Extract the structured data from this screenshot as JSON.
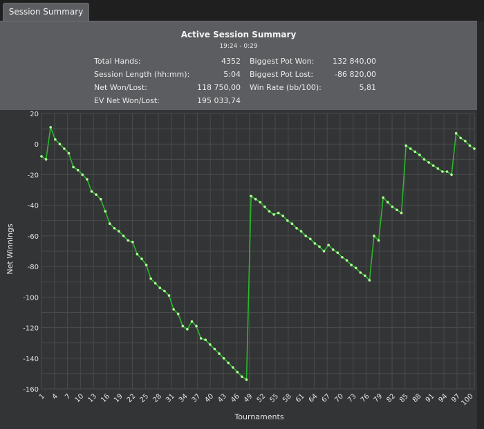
{
  "tab": {
    "label": "Session Summary"
  },
  "summary": {
    "title": "Active Session Summary",
    "time_range": "19:24 - 0:29",
    "stats_left": [
      {
        "label": "Total Hands:",
        "value": "4352"
      },
      {
        "label": "Session Length (hh:mm):",
        "value": "5:04"
      },
      {
        "label": "Net Won/Lost:",
        "value": "118 750,00"
      },
      {
        "label": "EV Net Won/Lost:",
        "value": "195 033,74"
      }
    ],
    "stats_right": [
      {
        "label": "Biggest Pot Won:",
        "value": "132 840,00"
      },
      {
        "label": "Biggest Pot Lost:",
        "value": "-86 820,00"
      },
      {
        "label": "Win Rate (bb/100):",
        "value": "5,81"
      }
    ]
  },
  "colors": {
    "line": "#2bb82b",
    "marker": "#b6ff9c",
    "grid": "#4a4b4d",
    "plot_bg": "#333435"
  },
  "chart_data": {
    "type": "line",
    "xlabel": "Tournaments",
    "ylabel": "Net Winnings",
    "xlim": [
      1,
      101
    ],
    "ylim": [
      -160,
      20
    ],
    "yticks": [
      20,
      0,
      -20,
      -40,
      -60,
      -80,
      -100,
      -120,
      -140,
      -160
    ],
    "xticks": [
      1,
      4,
      7,
      10,
      13,
      16,
      19,
      22,
      25,
      28,
      31,
      34,
      37,
      40,
      43,
      46,
      49,
      52,
      55,
      58,
      61,
      64,
      67,
      70,
      73,
      76,
      79,
      82,
      85,
      88,
      91,
      94,
      97,
      100
    ],
    "grid": true,
    "series": [
      {
        "values": [
          -8,
          -10,
          11,
          3,
          0,
          -3,
          -6,
          -15,
          -17,
          -20,
          -23,
          -31,
          -33,
          -36,
          -44,
          -52,
          -55,
          -57,
          -60,
          -63,
          -64,
          -72,
          -75,
          -79,
          -88,
          -91,
          -94,
          -96,
          -99,
          -108,
          -111,
          -119,
          -121,
          -116,
          -119,
          -127,
          -128,
          -131,
          -134,
          -137,
          -140,
          -143,
          -146,
          -149,
          -152,
          -154,
          -34,
          -36,
          -38,
          -41,
          -44,
          -46,
          -45,
          -47,
          -50,
          -52,
          -55,
          -57,
          -60,
          -62,
          -65,
          -67,
          -70,
          -66,
          -69,
          -71,
          -74,
          -76,
          -79,
          -81,
          -84,
          -86,
          -89,
          -60,
          -63,
          -35,
          -38,
          -41,
          -43,
          -45,
          -1,
          -3,
          -5,
          -7,
          -10,
          -12,
          -14,
          -16,
          -18,
          -18,
          -20,
          7,
          4,
          2,
          -1,
          -3
        ]
      }
    ]
  }
}
